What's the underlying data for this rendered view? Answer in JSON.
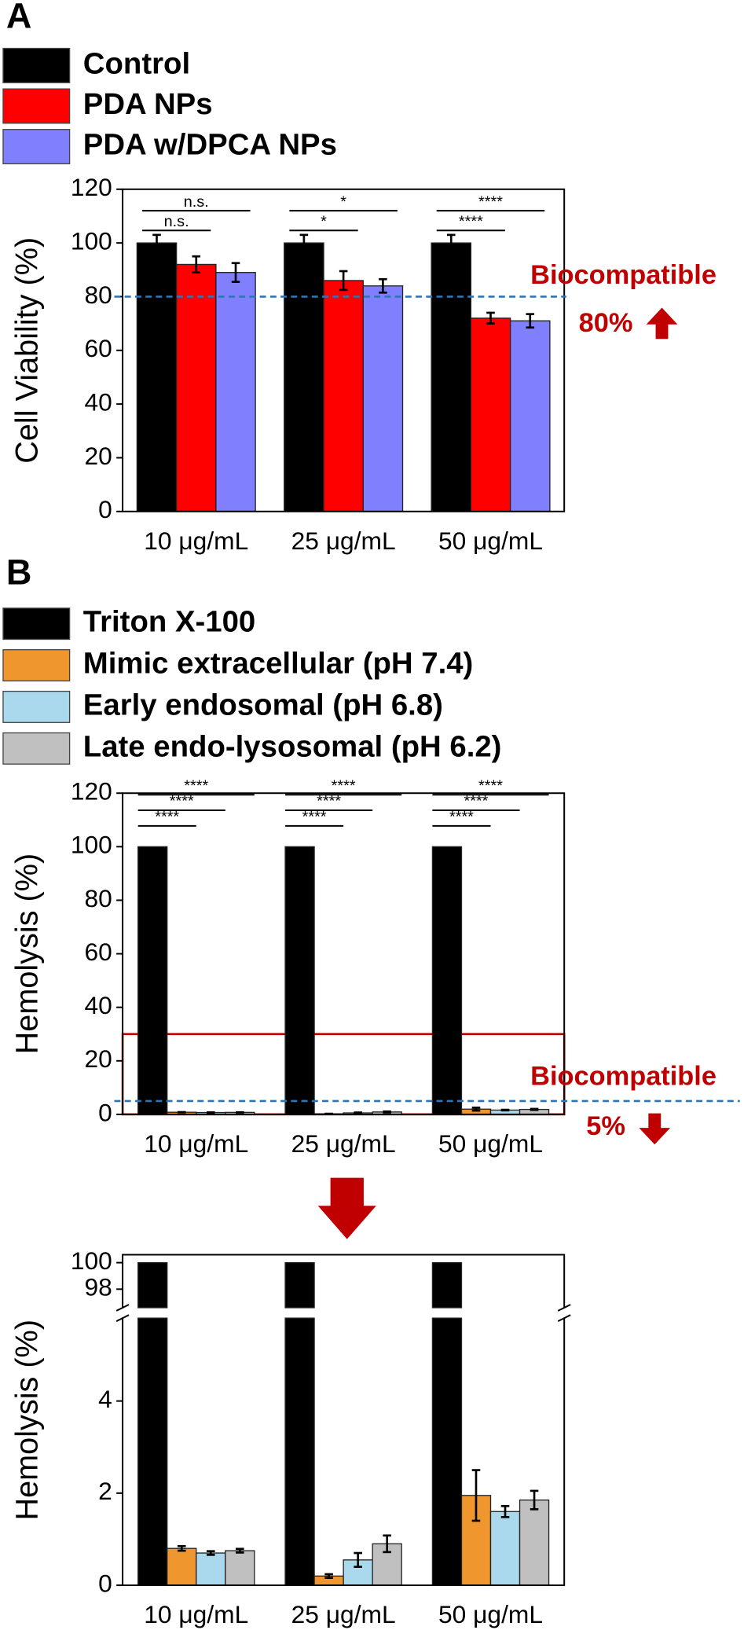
{
  "chart_data": [
    {
      "type": "bar",
      "panel": "A",
      "ylabel": "Cell Viability (%)",
      "categories": [
        "10 μg/mL",
        "25 μg/mL",
        "50 μg/mL"
      ],
      "series": [
        {
          "name": "Control",
          "color": "#000000",
          "values": [
            100,
            100,
            100
          ],
          "errors": [
            3,
            3,
            3
          ]
        },
        {
          "name": "PDA NPs",
          "color": "#ff0000",
          "values": [
            92,
            86,
            72
          ],
          "errors": [
            3,
            3.5,
            2
          ]
        },
        {
          "name": "PDA w/DPCA NPs",
          "color": "#8080ff",
          "values": [
            89,
            84,
            71
          ],
          "errors": [
            3.5,
            2.5,
            2.5
          ]
        }
      ],
      "ylim": [
        0,
        120
      ],
      "yticks": [
        0,
        20,
        40,
        60,
        80,
        100,
        120
      ],
      "significance": [
        [
          "n.s.",
          "n.s."
        ],
        [
          "*",
          "*"
        ],
        [
          "****",
          "****"
        ]
      ],
      "threshold": 80,
      "annotation": "Biocompatible",
      "threshold_label": "80%"
    },
    {
      "type": "bar",
      "panel": "B",
      "ylabel": "Hemolysis (%)",
      "categories": [
        "10 μg/mL",
        "25 μg/mL",
        "50 μg/mL"
      ],
      "series": [
        {
          "name": "Triton X-100",
          "color": "#000000",
          "values": [
            100,
            100,
            100
          ],
          "errors": [
            0,
            0,
            0
          ]
        },
        {
          "name": "Mimic extracellular (pH 7.4)",
          "color": "#f0962e",
          "values": [
            0.8,
            0.2,
            1.95
          ],
          "errors": [
            0.05,
            0.04,
            0.55
          ]
        },
        {
          "name": "Early endosomal (pH 6.8)",
          "color": "#aad8ec",
          "values": [
            0.7,
            0.55,
            1.6
          ],
          "errors": [
            0.04,
            0.15,
            0.12
          ]
        },
        {
          "name": "Late endo-lysosomal (pH 6.2)",
          "color": "#c0c0c0",
          "values": [
            0.75,
            0.9,
            1.85
          ],
          "errors": [
            0.04,
            0.18,
            0.2
          ]
        }
      ],
      "ylim": [
        0,
        120
      ],
      "yticks": [
        0,
        20,
        40,
        60,
        80,
        100,
        120
      ],
      "significance": [
        [
          "****",
          "****",
          "****"
        ],
        [
          "****",
          "****",
          "****"
        ],
        [
          "****",
          "****",
          "****"
        ]
      ],
      "highlight_range": [
        0,
        30
      ],
      "threshold": 5,
      "annotation": "Biocompatible",
      "threshold_label": "5%"
    },
    {
      "type": "broken_bar",
      "ylabel": "Hemolysis (%)",
      "categories": [
        "10 μg/mL",
        "25 μg/mL",
        "50 μg/mL"
      ],
      "series": [
        {
          "color": "#000000",
          "values": [
            100,
            100,
            100
          ],
          "errors": [
            0,
            0,
            0
          ]
        },
        {
          "color": "#f0962e",
          "values": [
            0.8,
            0.2,
            1.95
          ],
          "errors": [
            0.05,
            0.04,
            0.55
          ]
        },
        {
          "color": "#aad8ec",
          "values": [
            0.7,
            0.55,
            1.6
          ],
          "errors": [
            0.04,
            0.15,
            0.12
          ]
        },
        {
          "color": "#c0c0c0",
          "values": [
            0.75,
            0.9,
            1.85
          ],
          "errors": [
            0.04,
            0.18,
            0.2
          ]
        }
      ],
      "ylim": [
        0,
        5.8
      ],
      "yticks": [
        0,
        2,
        4
      ],
      "ylim_upper": [
        96.6,
        100.6
      ],
      "yticks_upper": [
        98,
        100
      ]
    }
  ]
}
